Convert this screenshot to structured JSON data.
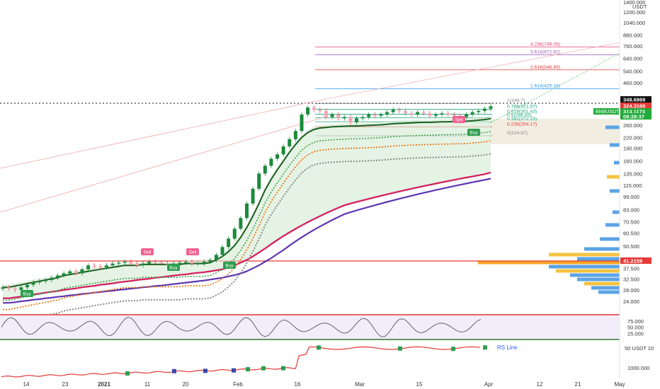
{
  "chart_data": {
    "type": "candlestick",
    "symbol": "BNBUSDT",
    "currency_top": "USDT",
    "price_axis_top": "1400.000",
    "scale": "log",
    "ylim": [
      22,
      1400
    ],
    "y_ticks": [
      "1200.000",
      "1040.000",
      "880.000",
      "760.000",
      "640.000",
      "540.000",
      "460.000",
      "260.000",
      "220.000",
      "190.000",
      "160.000",
      "135.000",
      "115.000",
      "99.000",
      "83.000",
      "70.500",
      "60.500",
      "50.500",
      "42.500",
      "37.500",
      "32.500",
      "28.000",
      "24.000"
    ],
    "x_ticks": [
      "14",
      "23",
      "2021",
      "11",
      "20",
      "Feb",
      "16",
      "Mar",
      "15",
      "Apr",
      "12",
      "21",
      "May"
    ],
    "price_badges": [
      {
        "label": "348.6969",
        "color": "#111111"
      },
      {
        "label": "324.3100",
        "color": "#e53935"
      },
      {
        "label": "313.1173",
        "color": "#22ab3b"
      },
      {
        "label": "09:28:37",
        "color": "#22ab3b"
      }
    ],
    "symbol_badge": "BNBUSDT",
    "support_label": "41.2159",
    "fib_levels": [
      {
        "label": "4.236(749.08)",
        "value": 749.08,
        "color": "#e53c75"
      },
      {
        "label": "3.618(672.62)",
        "value": 672.62,
        "color": "#9b59b6"
      },
      {
        "label": "2.618(548.89)",
        "value": 548.89,
        "color": "#e53935"
      },
      {
        "label": "1.618(425.16)",
        "value": 425.16,
        "color": "#2196f3"
      },
      {
        "label": "1(348.7)",
        "value": 348.7,
        "color": "#888888"
      },
      {
        "label": "0.786(321.57)",
        "value": 321.57,
        "color": "#1aa67f"
      },
      {
        "label": "0.618(301.43)",
        "value": 301.43,
        "color": "#1aa67f"
      },
      {
        "label": "0.5(286.83)",
        "value": 286.83,
        "color": "#1aa67f"
      },
      {
        "label": "0.382(272.23)",
        "value": 272.23,
        "color": "#1aa67f"
      },
      {
        "label": "0.236(254.17)",
        "value": 254.17,
        "color": "#e53935"
      },
      {
        "label": "0(224.97)",
        "value": 224.97,
        "color": "#888888"
      }
    ],
    "signals": [
      {
        "label": "Sell",
        "kind": "sell"
      },
      {
        "label": "Sell",
        "kind": "sell"
      },
      {
        "label": "Sell",
        "kind": "sell"
      },
      {
        "label": "Buy",
        "kind": "buy"
      },
      {
        "label": "Buy",
        "kind": "buy"
      },
      {
        "label": "Buy",
        "kind": "buy"
      },
      {
        "label": "Buy",
        "kind": "buy"
      }
    ],
    "close_series": [
      29,
      28.5,
      28,
      29,
      30,
      31,
      31.5,
      32,
      33,
      34,
      35,
      36,
      35,
      37,
      39,
      38.5,
      38,
      39,
      40,
      40.5,
      41,
      40,
      39,
      40,
      41,
      40.5,
      40,
      39.5,
      40,
      40.5,
      41,
      40,
      40,
      41,
      42,
      45,
      50,
      56,
      64,
      74,
      90,
      110,
      135,
      150,
      165,
      175,
      195,
      215,
      240,
      300,
      330,
      320,
      315,
      290,
      300,
      285,
      290,
      270,
      285,
      290,
      300,
      295,
      300,
      310,
      320,
      315,
      305,
      300,
      310,
      305,
      295,
      300,
      305,
      300,
      295,
      290,
      300,
      310,
      315,
      325,
      335
    ],
    "ma_lines": [
      {
        "name": "dark-green-ma",
        "color": "#1b5e20",
        "values": [
          29,
          29,
          29.5,
          30,
          30.5,
          31,
          31.5,
          32,
          32.5,
          33,
          34,
          34.5,
          35,
          35.5,
          36,
          36.5,
          37,
          37.5,
          38,
          38.5,
          39,
          39,
          39,
          39.5,
          39.5,
          39.5,
          39.5,
          39.5,
          39.5,
          39.5,
          40,
          40,
          40,
          40,
          40.5,
          42,
          44,
          47,
          51,
          57,
          65,
          76,
          90,
          108,
          125,
          142,
          160,
          180,
          200,
          220,
          235,
          245,
          250,
          252,
          254,
          255,
          256,
          257,
          257,
          258,
          259,
          260,
          261,
          263,
          265,
          266,
          267,
          268,
          269,
          270,
          270,
          271,
          272,
          272,
          273,
          273,
          274,
          276,
          278,
          280,
          284
        ]
      },
      {
        "name": "crimson-ma",
        "color": "#d81b60",
        "values": [
          25,
          25,
          25.3,
          25.6,
          26,
          26.3,
          26.6,
          27,
          27.3,
          27.6,
          28,
          28.3,
          28.6,
          29,
          29.3,
          29.6,
          30,
          30.3,
          30.6,
          31,
          31.3,
          31.6,
          32,
          32.3,
          32.6,
          33,
          33.3,
          33.6,
          34,
          34.3,
          34.6,
          35,
          35.3,
          35.6,
          36,
          36.5,
          37,
          38,
          39,
          40.5,
          42,
          44,
          46.5,
          49,
          52,
          55,
          58,
          61,
          64,
          67,
          70,
          73,
          76,
          79,
          82,
          85,
          88,
          90,
          92,
          94,
          96,
          98,
          100,
          102,
          104,
          106,
          108,
          110,
          112,
          114,
          116,
          118,
          120,
          122,
          124,
          126,
          128,
          130,
          132,
          134,
          137
        ]
      },
      {
        "name": "purple-ma",
        "color": "#5e35b1",
        "values": [
          23.5,
          23.5,
          23.7,
          24,
          24.2,
          24.5,
          24.7,
          25,
          25.2,
          25.5,
          25.7,
          26,
          26.2,
          26.5,
          26.7,
          27,
          27.2,
          27.5,
          27.7,
          28,
          28.2,
          28.5,
          28.7,
          29,
          29.2,
          29.5,
          29.7,
          30,
          30.3,
          30.6,
          30.9,
          31.2,
          31.5,
          31.8,
          32.2,
          32.6,
          33,
          33.6,
          34.2,
          35,
          36,
          37.5,
          39,
          41,
          43,
          45.5,
          48,
          51,
          54,
          57,
          60,
          63,
          66,
          69,
          72,
          75,
          78,
          80,
          82,
          84,
          86,
          88,
          90,
          92,
          94,
          96,
          98,
          100,
          102,
          104,
          106,
          108,
          110,
          112,
          114,
          116,
          118,
          120,
          122,
          124,
          126
        ]
      }
    ],
    "stochastic": {
      "ticks": [
        "75.000",
        "50.000",
        "25.000"
      ],
      "range": [
        0,
        100
      ]
    },
    "rs_panel": {
      "label": "RS Line",
      "ticks": [
        "50 USDT 10",
        "1000.000"
      ]
    }
  }
}
